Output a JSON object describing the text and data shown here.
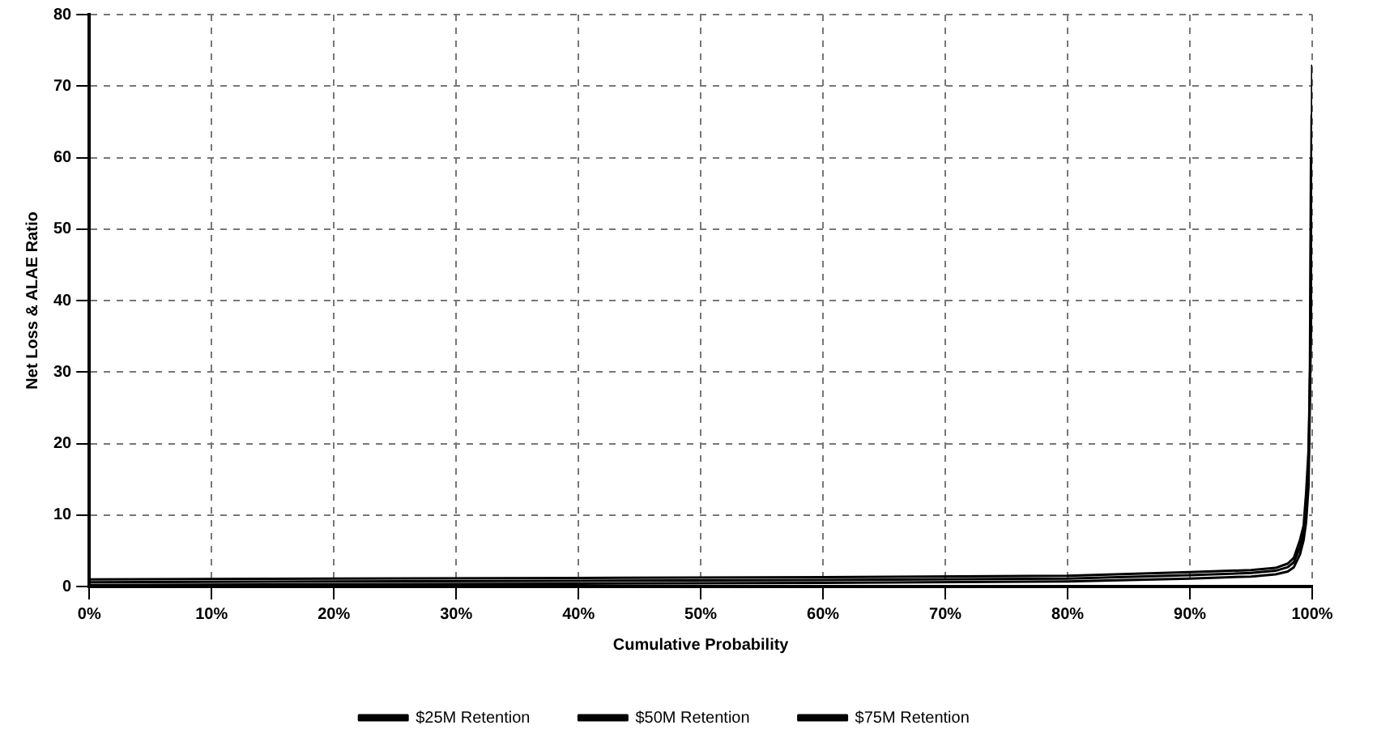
{
  "chart_data": {
    "type": "line",
    "xlabel": "Cumulative Probability",
    "ylabel": "Net Loss & ALAE Ratio",
    "xlim": [
      0,
      100
    ],
    "ylim": [
      0,
      80
    ],
    "xticks": [
      {
        "value": 0,
        "label": "0%"
      },
      {
        "value": 10,
        "label": "10%"
      },
      {
        "value": 20,
        "label": "20%"
      },
      {
        "value": 30,
        "label": "30%"
      },
      {
        "value": 40,
        "label": "40%"
      },
      {
        "value": 50,
        "label": "50%"
      },
      {
        "value": 60,
        "label": "60%"
      },
      {
        "value": 70,
        "label": "70%"
      },
      {
        "value": 80,
        "label": "80%"
      },
      {
        "value": 90,
        "label": "90%"
      },
      {
        "value": 100,
        "label": "100%"
      }
    ],
    "yticks": [
      0,
      10,
      20,
      30,
      40,
      50,
      60,
      70,
      80
    ],
    "grid": true,
    "legend": "bottom",
    "marker": "none",
    "line_style": "solid",
    "series": [
      {
        "name": "$25M Retention",
        "color": "#000000",
        "x": [
          0,
          20,
          40,
          60,
          80,
          90,
          95,
          97,
          98,
          98.5,
          99,
          99.3,
          99.5,
          99.7,
          99.8,
          99.9
        ],
        "values": [
          0.2,
          0.3,
          0.4,
          0.5,
          0.7,
          1.1,
          1.4,
          1.7,
          2.1,
          2.7,
          4.5,
          6.5,
          9,
          14,
          25,
          60
        ]
      },
      {
        "name": "$50M Retention",
        "color": "#000000",
        "x": [
          0,
          20,
          40,
          60,
          80,
          90,
          95,
          97,
          98,
          98.5,
          99,
          99.3,
          99.5,
          99.7,
          99.85,
          99.95
        ],
        "values": [
          0.6,
          0.7,
          0.8,
          0.9,
          1.1,
          1.6,
          1.9,
          2.2,
          2.7,
          3.4,
          5.5,
          7.5,
          11,
          17,
          32,
          66
        ]
      },
      {
        "name": "$75M Retention",
        "color": "#000000",
        "x": [
          0,
          20,
          40,
          60,
          80,
          90,
          95,
          97,
          98,
          98.5,
          99,
          99.3,
          99.5,
          99.7,
          99.9,
          100
        ],
        "values": [
          1,
          1.1,
          1.2,
          1.3,
          1.5,
          2,
          2.3,
          2.6,
          3.2,
          4,
          6.5,
          8.5,
          13,
          19,
          36,
          73
        ]
      }
    ]
  }
}
